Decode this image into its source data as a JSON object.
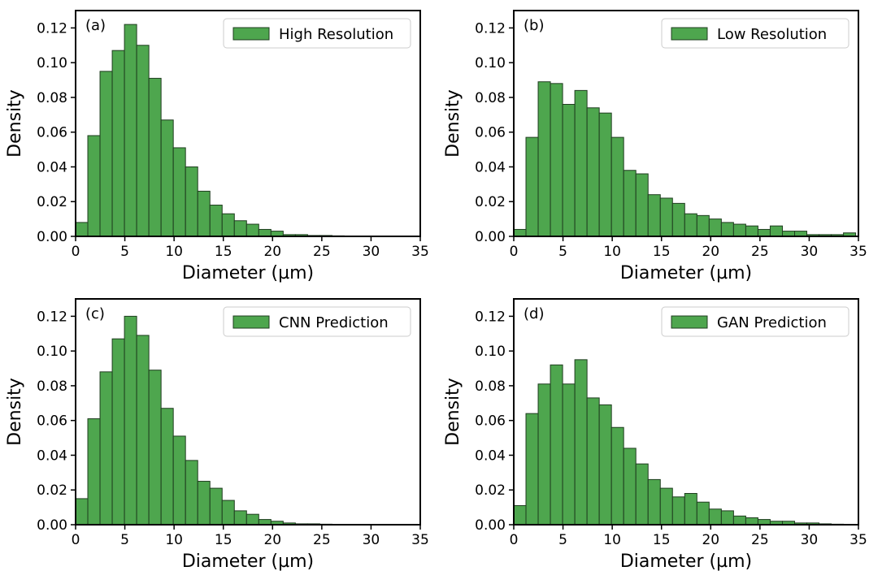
{
  "colors": {
    "bar_fill": "#4ea64e",
    "bar_edge": "#1f3d1f",
    "axis": "#000000",
    "legend_edge": "#cccccc"
  },
  "chart_data": [
    {
      "type": "bar",
      "panel_label": "(a)",
      "legend": "High Resolution",
      "xlabel": "Diameter (µm)",
      "ylabel": "Density",
      "xlim": [
        0,
        35
      ],
      "ylim": [
        0,
        0.13
      ],
      "xticks": [
        0,
        5,
        10,
        15,
        20,
        25,
        30,
        35
      ],
      "yticks": [
        0.0,
        0.02,
        0.04,
        0.06,
        0.08,
        0.1,
        0.12
      ],
      "ytick_labels": [
        "0.00",
        "0.02",
        "0.04",
        "0.06",
        "0.08",
        "0.10",
        "0.12"
      ],
      "bin_width": 1.24,
      "values": [
        0.008,
        0.058,
        0.095,
        0.107,
        0.122,
        0.11,
        0.091,
        0.067,
        0.051,
        0.04,
        0.026,
        0.018,
        0.013,
        0.009,
        0.007,
        0.004,
        0.003,
        0.001,
        0.001,
        0.0005,
        0.0005,
        0.0003,
        0.0002,
        0.0002,
        0.0001,
        0.0001,
        0.0001,
        0.0001
      ],
      "grid": false,
      "legend_position": "upper-right"
    },
    {
      "type": "bar",
      "panel_label": "(b)",
      "legend": "Low Resolution",
      "xlabel": "Diameter (µm)",
      "ylabel": "Density",
      "xlim": [
        0,
        35
      ],
      "ylim": [
        0,
        0.13
      ],
      "xticks": [
        0,
        5,
        10,
        15,
        20,
        25,
        30,
        35
      ],
      "yticks": [
        0.0,
        0.02,
        0.04,
        0.06,
        0.08,
        0.1,
        0.12
      ],
      "ytick_labels": [
        "0.00",
        "0.02",
        "0.04",
        "0.06",
        "0.08",
        "0.10",
        "0.12"
      ],
      "bin_width": 1.24,
      "values": [
        0.004,
        0.057,
        0.089,
        0.088,
        0.076,
        0.084,
        0.074,
        0.071,
        0.057,
        0.038,
        0.036,
        0.024,
        0.022,
        0.019,
        0.013,
        0.012,
        0.01,
        0.008,
        0.007,
        0.006,
        0.004,
        0.006,
        0.003,
        0.003,
        0.001,
        0.001,
        0.001,
        0.002
      ],
      "grid": false,
      "legend_position": "upper-right"
    },
    {
      "type": "bar",
      "panel_label": "(c)",
      "legend": "CNN Prediction",
      "xlabel": "Diameter (µm)",
      "ylabel": "Density",
      "xlim": [
        0,
        35
      ],
      "ylim": [
        0,
        0.13
      ],
      "xticks": [
        0,
        5,
        10,
        15,
        20,
        25,
        30,
        35
      ],
      "yticks": [
        0.0,
        0.02,
        0.04,
        0.06,
        0.08,
        0.1,
        0.12
      ],
      "ytick_labels": [
        "0.00",
        "0.02",
        "0.04",
        "0.06",
        "0.08",
        "0.10",
        "0.12"
      ],
      "bin_width": 1.24,
      "values": [
        0.015,
        0.061,
        0.088,
        0.107,
        0.12,
        0.109,
        0.089,
        0.067,
        0.051,
        0.037,
        0.025,
        0.021,
        0.014,
        0.008,
        0.006,
        0.003,
        0.002,
        0.001,
        0.0005,
        0.0005,
        0.0003,
        0.0002,
        0.0002,
        0.0001,
        0.0001,
        0.0001,
        0.0001,
        0.0001
      ],
      "grid": false,
      "legend_position": "upper-right"
    },
    {
      "type": "bar",
      "panel_label": "(d)",
      "legend": "GAN Prediction",
      "xlabel": "Diameter (µm)",
      "ylabel": "Density",
      "xlim": [
        0,
        35
      ],
      "ylim": [
        0,
        0.13
      ],
      "xticks": [
        0,
        5,
        10,
        15,
        20,
        25,
        30,
        35
      ],
      "yticks": [
        0.0,
        0.02,
        0.04,
        0.06,
        0.08,
        0.1,
        0.12
      ],
      "ytick_labels": [
        "0.00",
        "0.02",
        "0.04",
        "0.06",
        "0.08",
        "0.10",
        "0.12"
      ],
      "bin_width": 1.24,
      "values": [
        0.011,
        0.064,
        0.081,
        0.092,
        0.081,
        0.095,
        0.073,
        0.069,
        0.056,
        0.044,
        0.035,
        0.026,
        0.021,
        0.016,
        0.018,
        0.013,
        0.009,
        0.008,
        0.005,
        0.004,
        0.003,
        0.002,
        0.002,
        0.001,
        0.001,
        0.0005,
        0.0003,
        0.0002
      ],
      "grid": false,
      "legend_position": "upper-right"
    }
  ]
}
